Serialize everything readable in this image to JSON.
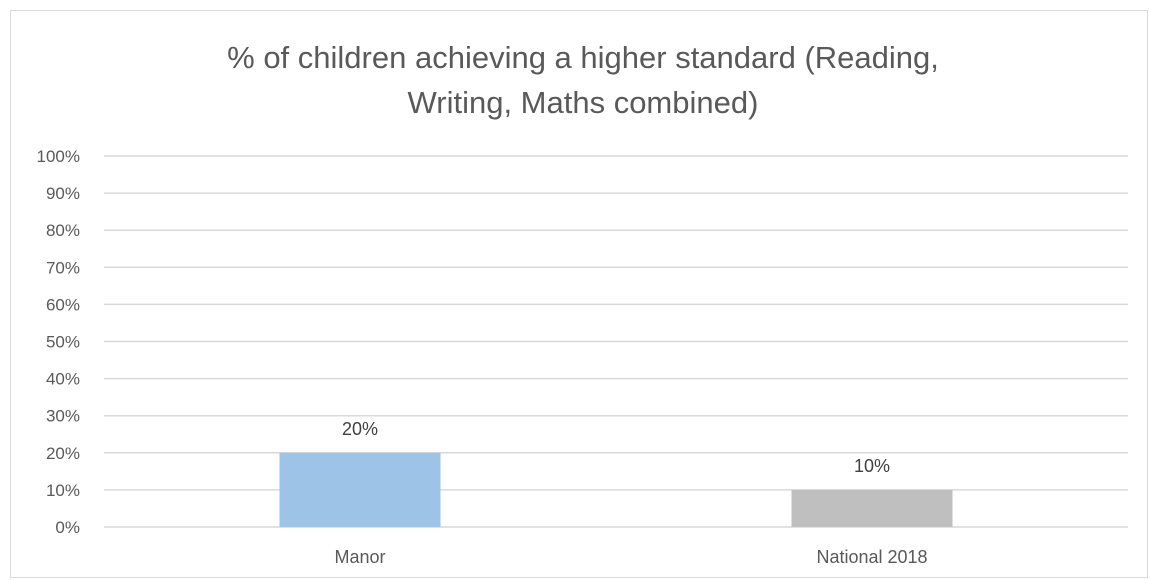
{
  "chart_data": {
    "type": "bar",
    "title_lines": [
      "% of children achieving a higher standard (Reading,",
      "Writing, Maths combined)"
    ],
    "categories": [
      "Manor",
      "National 2018"
    ],
    "values": [
      20,
      10
    ],
    "data_labels": [
      "20%",
      "10%"
    ],
    "bar_colors": [
      "#9dc3e6",
      "#bfbfbf"
    ],
    "ylim": [
      0,
      100
    ],
    "y_ticks": [
      {
        "value": 0,
        "label": "0%"
      },
      {
        "value": 10,
        "label": "10%"
      },
      {
        "value": 20,
        "label": "20%"
      },
      {
        "value": 30,
        "label": "30%"
      },
      {
        "value": 40,
        "label": "40%"
      },
      {
        "value": 50,
        "label": "50%"
      },
      {
        "value": 60,
        "label": "60%"
      },
      {
        "value": 70,
        "label": "70%"
      },
      {
        "value": 80,
        "label": "80%"
      },
      {
        "value": 90,
        "label": "90%"
      },
      {
        "value": 100,
        "label": "100%"
      }
    ],
    "grid": true,
    "legend": "none"
  }
}
